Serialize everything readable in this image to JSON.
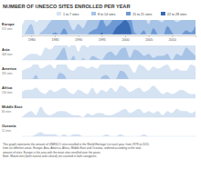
{
  "chart_data": {
    "type": "horizon",
    "title": "NUMBER OF UNESCO SITES ENROLLED PER YEAR",
    "legend_labels": [
      "1 to 7 sites",
      "8 to 14 sites",
      "15 to 21 sites",
      "22 to 28 sites"
    ],
    "colors": [
      "#d6e3f3",
      "#a7c3e6",
      "#6d9ad4",
      "#3a6cb5"
    ],
    "bands": [
      0,
      7,
      14,
      21,
      28
    ],
    "x": [
      1978,
      1979,
      1980,
      1981,
      1982,
      1983,
      1984,
      1985,
      1986,
      1987,
      1988,
      1989,
      1990,
      1991,
      1992,
      1993,
      1994,
      1995,
      1996,
      1997,
      1998,
      1999,
      2000,
      2001,
      2002,
      2003,
      2004,
      2005,
      2006,
      2007,
      2008,
      2009,
      2010,
      2011,
      2012,
      2013,
      2014,
      2015
    ],
    "xlim": [
      1978,
      2015
    ],
    "xticks": [
      1980,
      1985,
      1990,
      1995,
      2000,
      2005,
      2010
    ],
    "tick_labels": "x",
    "series": [
      {
        "name": "Europe",
        "subtitle": "572 sites",
        "values": [
          4,
          9,
          12,
          6,
          8,
          10,
          13,
          15,
          14,
          17,
          13,
          9,
          12,
          10,
          14,
          16,
          17,
          22,
          18,
          20,
          24,
          26,
          28,
          25,
          15,
          14,
          16,
          12,
          17,
          14,
          13,
          18,
          15,
          13,
          14,
          16,
          15,
          18
        ]
      },
      {
        "name": "Asia",
        "subtitle": "308 sites",
        "values": [
          0,
          2,
          3,
          3,
          2,
          6,
          5,
          7,
          10,
          13,
          6,
          9,
          4,
          8,
          6,
          9,
          8,
          7,
          10,
          11,
          9,
          12,
          13,
          8,
          12,
          11,
          9,
          10,
          8,
          9,
          9,
          10,
          7,
          10,
          9,
          13,
          11,
          9
        ]
      },
      {
        "name": "America",
        "subtitle": "235 sites",
        "values": [
          4,
          5,
          6,
          9,
          5,
          6,
          7,
          5,
          10,
          9,
          5,
          4,
          6,
          6,
          5,
          6,
          5,
          8,
          9,
          7,
          7,
          11,
          10,
          6,
          3,
          7,
          6,
          4,
          6,
          5,
          6,
          7,
          4,
          5,
          4,
          4,
          7,
          6
        ]
      },
      {
        "name": "Africa",
        "subtitle": "134 sites",
        "values": [
          3,
          4,
          4,
          5,
          3,
          2,
          4,
          3,
          4,
          5,
          3,
          2,
          4,
          3,
          2,
          5,
          2,
          4,
          3,
          5,
          3,
          6,
          5,
          3,
          4,
          5,
          3,
          4,
          6,
          4,
          2,
          3,
          2,
          3,
          4,
          3,
          2,
          2
        ]
      },
      {
        "name": "Middle East",
        "subtitle": "84 sites",
        "values": [
          0,
          2,
          3,
          1,
          5,
          2,
          1,
          2,
          3,
          3,
          2,
          1,
          1,
          0,
          2,
          1,
          2,
          2,
          1,
          1,
          2,
          3,
          4,
          2,
          3,
          4,
          2,
          3,
          2,
          3,
          1,
          3,
          2,
          4,
          3,
          3,
          2,
          3
        ]
      },
      {
        "name": "Oceania",
        "subtitle": "12 sites",
        "values": [
          0,
          0,
          0,
          1,
          2,
          1,
          1,
          1,
          0,
          1,
          0,
          1,
          1,
          0,
          0,
          0,
          0,
          0,
          1,
          0,
          0,
          1,
          0,
          0,
          0,
          0,
          1,
          0,
          0,
          0,
          0,
          0,
          0,
          0,
          0,
          0,
          0,
          0
        ]
      }
    ],
    "notes": [
      "This graph represents the amount of UNESCO sites enrolled in the World Heritage List each year, from 1978 to 2015,",
      "from six different areas: Europe, Asia, America, Africa, Middle East and Oceania, ordered according to the total",
      "amount of sites. Europe is the area with the most sites enrolled over the years.",
      "Note: Mixed sites (both natural and cultural) are counted in both categories."
    ]
  }
}
